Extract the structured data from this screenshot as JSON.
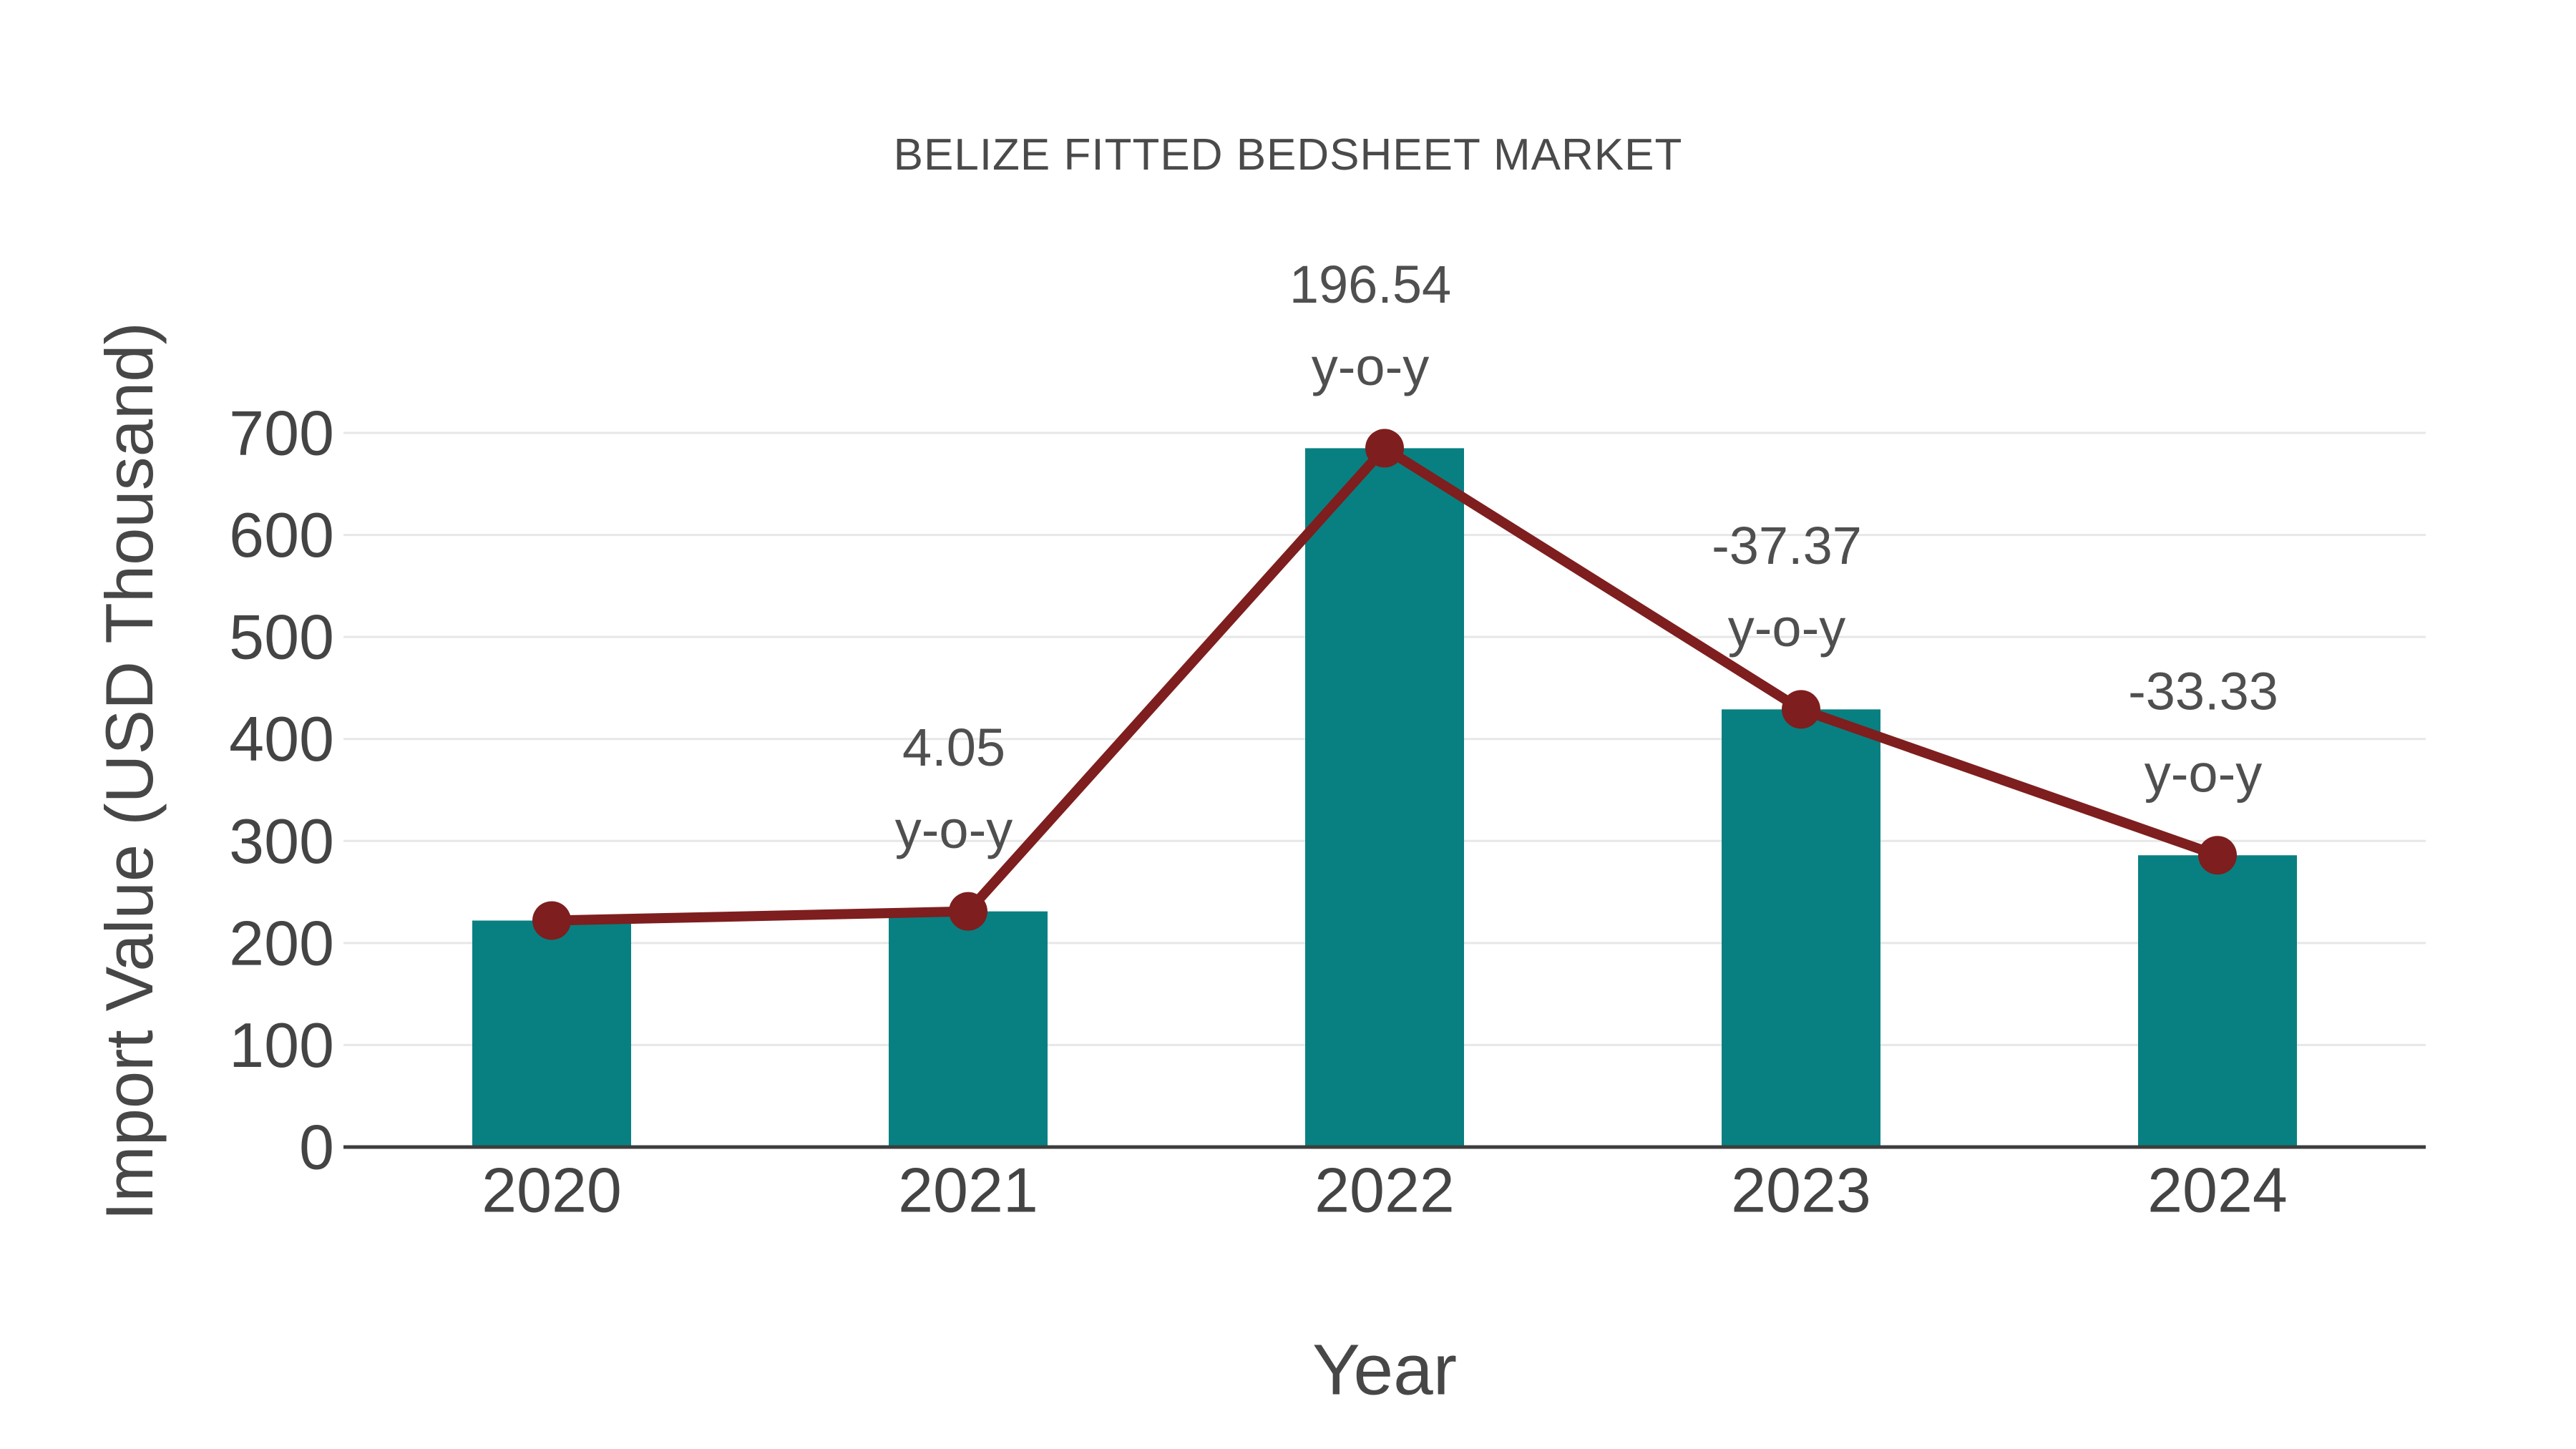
{
  "title": "BELIZE FITTED BEDSHEET MARKET",
  "x_axis": {
    "title": "Year"
  },
  "y_axis": {
    "title": "Import Value (USD Thousand)"
  },
  "chart_data": {
    "type": "bar",
    "title": "BELIZE FITTED BEDSHEET MARKET",
    "xlabel": "Year",
    "ylabel": "Import Value (USD Thousand)",
    "categories": [
      "2020",
      "2021",
      "2022",
      "2023",
      "2024"
    ],
    "series": [
      {
        "name": "Import Value bars",
        "type": "bar",
        "values": [
          222,
          231,
          685,
          429,
          286
        ]
      },
      {
        "name": "Import Value trend line",
        "type": "line",
        "values": [
          222,
          231,
          685,
          429,
          286
        ]
      }
    ],
    "ylim": [
      0,
      700
    ],
    "yticks": [
      0,
      100,
      200,
      300,
      400,
      500,
      600,
      700
    ],
    "grid": true,
    "legend_position": "none",
    "annotations": [
      {
        "category": "2021",
        "line1": "4.05",
        "line2": "y-o-y"
      },
      {
        "category": "2022",
        "line1": "196.54",
        "line2": "y-o-y"
      },
      {
        "category": "2023",
        "line1": "-37.37",
        "line2": "y-o-y"
      },
      {
        "category": "2024",
        "line1": "-33.33",
        "line2": "y-o-y"
      }
    ],
    "colors": {
      "bar": "#088081",
      "line": "#7e1e1e",
      "marker": "#7e1e1e",
      "grid": "#e7e7e7",
      "axis_line": "#3d3d3d",
      "text": "#474747",
      "annotation_text": "#4f4f4f",
      "background": "#ffffff"
    }
  }
}
